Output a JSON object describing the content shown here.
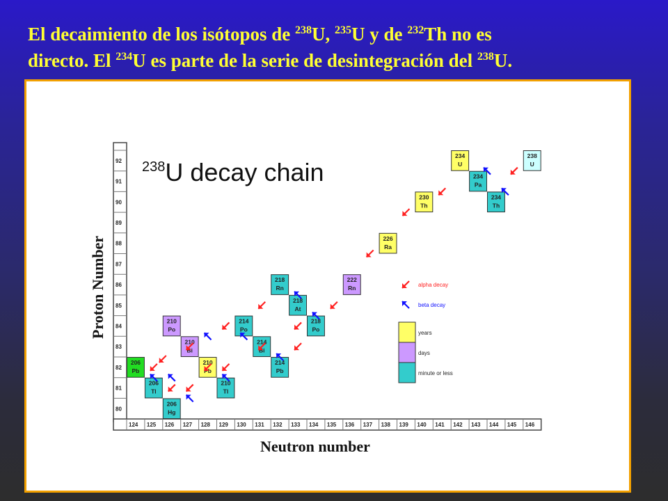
{
  "title": {
    "line1": [
      {
        "t": "El decaimiento de los isótopos de "
      },
      {
        "sup": "238"
      },
      {
        "t": "U, "
      },
      {
        "sup": "235"
      },
      {
        "t": "U y de "
      },
      {
        "sup": "232"
      },
      {
        "t": "Th no es"
      }
    ],
    "line2": [
      {
        "t": "directo. El "
      },
      {
        "sup": "234"
      },
      {
        "t": "U es parte de la serie de desintegración del "
      },
      {
        "sup": "238"
      },
      {
        "t": "U."
      }
    ]
  },
  "figure": {
    "heading_sup": "238",
    "heading_text": "U decay chain",
    "ylabel": "Proton Number",
    "xlabel": "Neutron number",
    "proton_ticks": [
      "92",
      "91",
      "90",
      "89",
      "88",
      "87",
      "86",
      "85",
      "84",
      "83",
      "82",
      "81",
      "80"
    ],
    "neutron_ticks": [
      "124",
      "125",
      "126",
      "127",
      "128",
      "129",
      "130",
      "131",
      "132",
      "133",
      "134",
      "135",
      "136",
      "137",
      "138",
      "139",
      "140",
      "141",
      "142",
      "143",
      "144",
      "145",
      "146"
    ],
    "colors": {
      "years": "#ffff66",
      "days": "#cc99ff",
      "minutes": "#33cccc",
      "stable": "#22dd22",
      "origin": "#ccffff",
      "alpha_arrow": "#ff2020",
      "beta_arrow": "#1010ff"
    },
    "isotopes": [
      {
        "mass": "238",
        "el": "U",
        "n": 146,
        "z": 92,
        "kind": "origin"
      },
      {
        "mass": "234",
        "el": "Th",
        "n": 144,
        "z": 90,
        "kind": "minutes"
      },
      {
        "mass": "234",
        "el": "Pa",
        "n": 143,
        "z": 91,
        "kind": "minutes"
      },
      {
        "mass": "234",
        "el": "U",
        "n": 142,
        "z": 92,
        "kind": "years"
      },
      {
        "mass": "230",
        "el": "Th",
        "n": 140,
        "z": 90,
        "kind": "years"
      },
      {
        "mass": "226",
        "el": "Ra",
        "n": 138,
        "z": 88,
        "kind": "years"
      },
      {
        "mass": "222",
        "el": "Rn",
        "n": 136,
        "z": 86,
        "kind": "days"
      },
      {
        "mass": "218",
        "el": "Po",
        "n": 134,
        "z": 84,
        "kind": "minutes"
      },
      {
        "mass": "218",
        "el": "At",
        "n": 133,
        "z": 85,
        "kind": "minutes"
      },
      {
        "mass": "218",
        "el": "Rn",
        "n": 132,
        "z": 86,
        "kind": "minutes"
      },
      {
        "mass": "214",
        "el": "Pb",
        "n": 132,
        "z": 82,
        "kind": "minutes"
      },
      {
        "mass": "214",
        "el": "Bi",
        "n": 131,
        "z": 83,
        "kind": "minutes"
      },
      {
        "mass": "214",
        "el": "Po",
        "n": 130,
        "z": 84,
        "kind": "minutes"
      },
      {
        "mass": "210",
        "el": "Tl",
        "n": 129,
        "z": 81,
        "kind": "minutes"
      },
      {
        "mass": "210",
        "el": "Pb",
        "n": 128,
        "z": 82,
        "kind": "years"
      },
      {
        "mass": "210",
        "el": "Bi",
        "n": 127,
        "z": 83,
        "kind": "days"
      },
      {
        "mass": "210",
        "el": "Po",
        "n": 126,
        "z": 84,
        "kind": "days"
      },
      {
        "mass": "206",
        "el": "Hg",
        "n": 126,
        "z": 80,
        "kind": "minutes"
      },
      {
        "mass": "206",
        "el": "Tl",
        "n": 125,
        "z": 81,
        "kind": "minutes"
      },
      {
        "mass": "206",
        "el": "Pb",
        "n": 124,
        "z": 82,
        "kind": "stable"
      }
    ],
    "alpha_arrows": [
      [
        145,
        91.5
      ],
      [
        141,
        90.5
      ],
      [
        139,
        89.5
      ],
      [
        137,
        87.5
      ],
      [
        135,
        85
      ],
      [
        131,
        85
      ],
      [
        133,
        84
      ],
      [
        129,
        84
      ],
      [
        127,
        83
      ],
      [
        125,
        82
      ],
      [
        131,
        83
      ],
      [
        129,
        82
      ],
      [
        127,
        81
      ],
      [
        133,
        83
      ],
      [
        128,
        82
      ],
      [
        126,
        81
      ],
      [
        125.5,
        82.4
      ]
    ],
    "beta_arrows": [
      [
        143.5,
        91.5
      ],
      [
        144.5,
        90.5
      ],
      [
        133,
        85.5
      ],
      [
        134,
        84.5
      ],
      [
        130,
        83.5
      ],
      [
        132,
        82.5
      ],
      [
        126,
        81.5
      ],
      [
        127,
        80.5
      ],
      [
        128,
        83.5
      ],
      [
        129,
        81.5
      ],
      [
        125,
        81.5
      ]
    ],
    "legend": [
      {
        "type": "arrow",
        "label": "alpha decay",
        "color": "alpha_arrow"
      },
      {
        "type": "arrow",
        "label": "beta decay",
        "color": "beta_arrow"
      },
      {
        "type": "box",
        "label": "years",
        "color": "years"
      },
      {
        "type": "box",
        "label": "days",
        "color": "days"
      },
      {
        "type": "box",
        "label": "minute or less",
        "color": "minutes"
      }
    ]
  }
}
